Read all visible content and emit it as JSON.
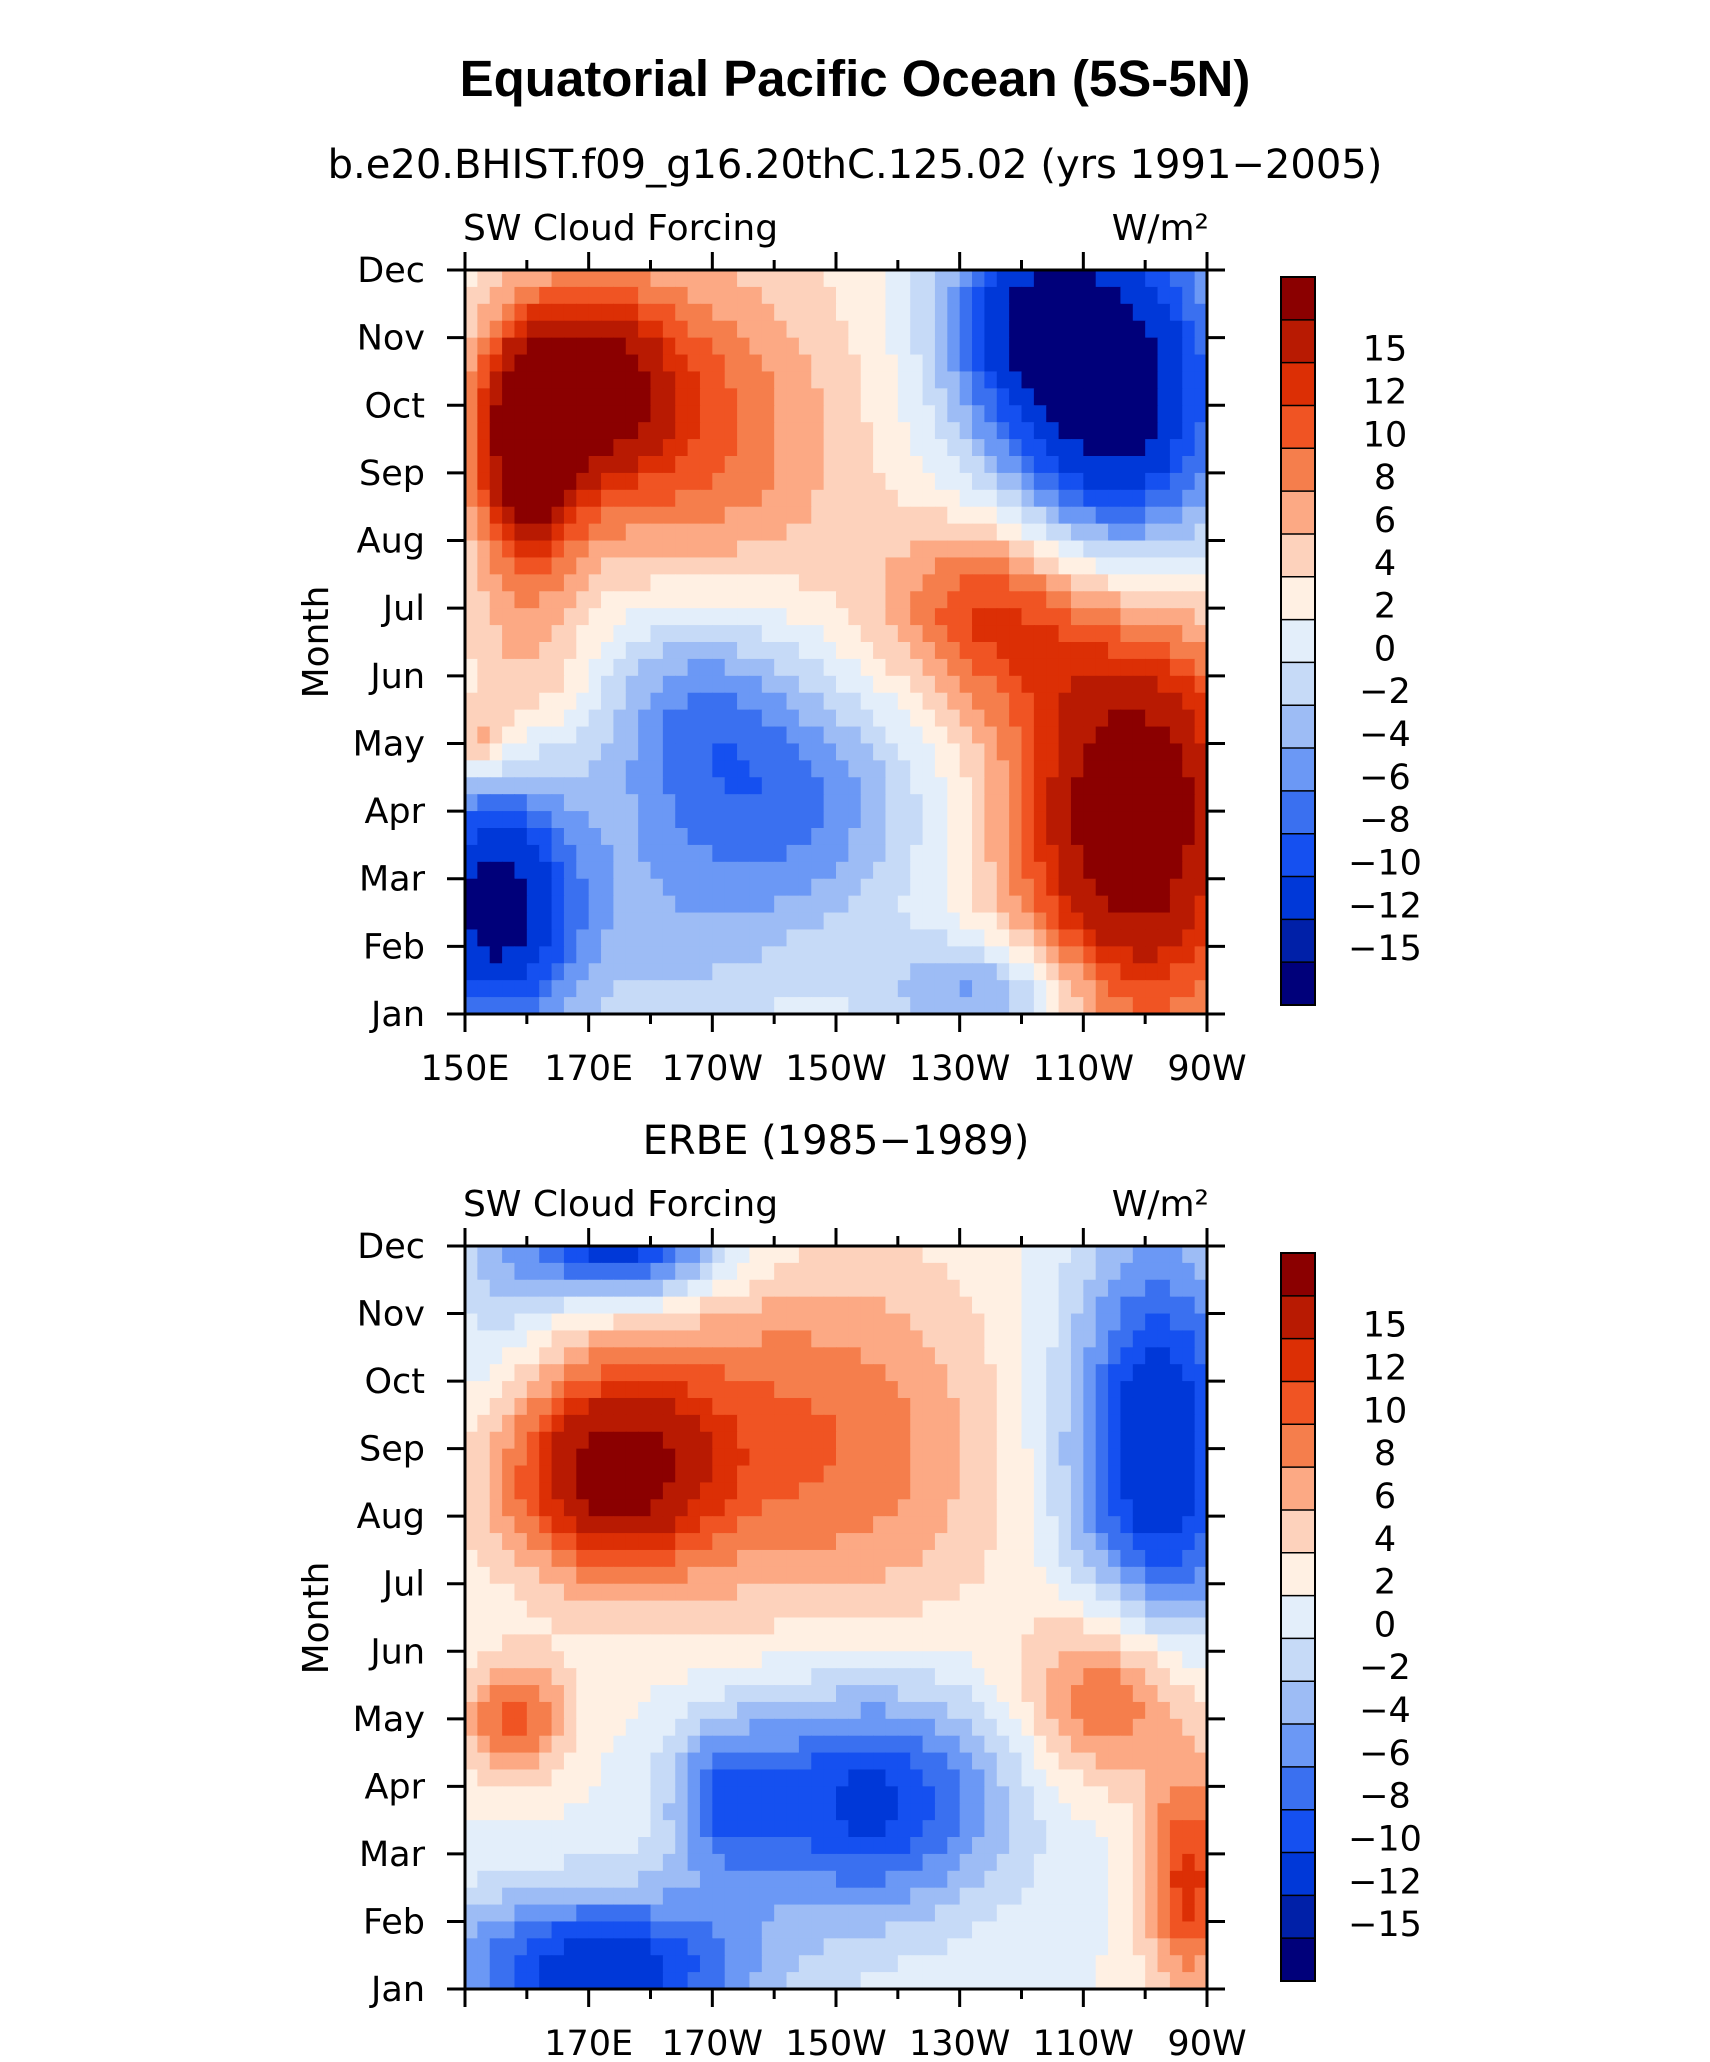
{
  "title": "Equatorial Pacific Ocean (5S-5N)",
  "chart_data": [
    {
      "type": "heatmap",
      "subtitle": "b.e20.BHIST.f09_g16.20thC.125.02 (yrs 1991−2005)",
      "left_label": "SW Cloud Forcing",
      "right_label": "W/m²",
      "ylabel": "Month",
      "y_ticks": [
        "Jan",
        "Feb",
        "Mar",
        "Apr",
        "May",
        "Jun",
        "Jul",
        "Aug",
        "Sep",
        "Oct",
        "Nov",
        "Dec"
      ],
      "x_ticks": [
        "150E",
        "170E",
        "170W",
        "150W",
        "130W",
        "110W",
        "90W"
      ],
      "x_tick_values": [
        150,
        170,
        190,
        210,
        230,
        250,
        270
      ],
      "xlim": [
        150,
        270
      ],
      "ylim": [
        1,
        12
      ],
      "colorbar_levels": [
        "15",
        "12",
        "10",
        "8",
        "6",
        "4",
        "2",
        "0",
        "−2",
        "−4",
        "−6",
        "−8",
        "−10",
        "−12",
        "−15"
      ],
      "features": [
        {
          "lon": 160,
          "month": 9.3,
          "value": 16,
          "sx": 6,
          "sy": 1.2
        },
        {
          "lon": 170,
          "month": 10.3,
          "value": 13,
          "sx": 10,
          "sy": 1.0
        },
        {
          "lon": 187,
          "month": 9.5,
          "value": 8,
          "sx": 18,
          "sy": 2.0
        },
        {
          "lon": 160,
          "month": 6.0,
          "value": 4,
          "sx": 8,
          "sy": 1.0
        },
        {
          "lon": 152,
          "month": 5.0,
          "value": 6,
          "sx": 4,
          "sy": 0.4
        },
        {
          "lon": 155,
          "month": 2.6,
          "value": -17,
          "sx": 10,
          "sy": 1.4
        },
        {
          "lon": 187,
          "month": 5.5,
          "value": -8,
          "sx": 12,
          "sy": 1.3
        },
        {
          "lon": 205,
          "month": 4.0,
          "value": -7,
          "sx": 14,
          "sy": 1.3
        },
        {
          "lon": 185,
          "month": 2.3,
          "value": -4,
          "sx": 12,
          "sy": 1.3
        },
        {
          "lon": 258,
          "month": 4.0,
          "value": 19,
          "sx": 14,
          "sy": 2.4
        },
        {
          "lon": 235,
          "month": 7.0,
          "value": 10,
          "sx": 12,
          "sy": 1.0
        },
        {
          "lon": 255,
          "month": 10.0,
          "value": -18,
          "sx": 14,
          "sy": 2.0
        },
        {
          "lon": 240,
          "month": 11.3,
          "value": -9,
          "sx": 10,
          "sy": 1.0
        },
        {
          "lon": 235,
          "month": 1.3,
          "value": -8,
          "sx": 12,
          "sy": 0.6
        }
      ]
    },
    {
      "type": "heatmap",
      "subtitle": "ERBE (1985−1989)",
      "left_label": "SW Cloud Forcing",
      "right_label": "W/m²",
      "ylabel": "Month",
      "y_ticks": [
        "Jan",
        "Feb",
        "Mar",
        "Apr",
        "May",
        "Jun",
        "Jul",
        "Aug",
        "Sep",
        "Oct",
        "Nov",
        "Dec"
      ],
      "x_ticks": [
        "170E",
        "170W",
        "150W",
        "130W",
        "110W",
        "90W"
      ],
      "x_tick_values": [
        170,
        190,
        210,
        230,
        250,
        270
      ],
      "xlim": [
        150,
        270
      ],
      "ylim": [
        1,
        12
      ],
      "colorbar_levels": [
        "15",
        "12",
        "10",
        "8",
        "6",
        "4",
        "2",
        "0",
        "−2",
        "−4",
        "−6",
        "−8",
        "−10",
        "−12",
        "−15"
      ],
      "features": [
        {
          "lon": 173,
          "month": 8.6,
          "value": 13,
          "sx": 12,
          "sy": 1.0
        },
        {
          "lon": 185,
          "month": 9.3,
          "value": 6,
          "sx": 18,
          "sy": 1.8
        },
        {
          "lon": 215,
          "month": 9.0,
          "value": 6,
          "sx": 16,
          "sy": 2.0
        },
        {
          "lon": 158,
          "month": 5.0,
          "value": 9,
          "sx": 6,
          "sy": 0.6
        },
        {
          "lon": 172,
          "month": 1.3,
          "value": -14,
          "sx": 18,
          "sy": 0.8
        },
        {
          "lon": 175,
          "month": 12.0,
          "value": -15,
          "sx": 12,
          "sy": 0.6
        },
        {
          "lon": 215,
          "month": 3.8,
          "value": -13,
          "sx": 16,
          "sy": 1.2
        },
        {
          "lon": 192,
          "month": 3.8,
          "value": -7,
          "sx": 6,
          "sy": 0.8
        },
        {
          "lon": 262,
          "month": 9.0,
          "value": -15,
          "sx": 10,
          "sy": 2.2
        },
        {
          "lon": 255,
          "month": 5.4,
          "value": 10,
          "sx": 10,
          "sy": 1.0
        },
        {
          "lon": 267,
          "month": 2.6,
          "value": 11,
          "sx": 5,
          "sy": 1.2
        },
        {
          "lon": 155,
          "month": 11.0,
          "value": -3,
          "sx": 6,
          "sy": 1.2
        }
      ]
    }
  ]
}
